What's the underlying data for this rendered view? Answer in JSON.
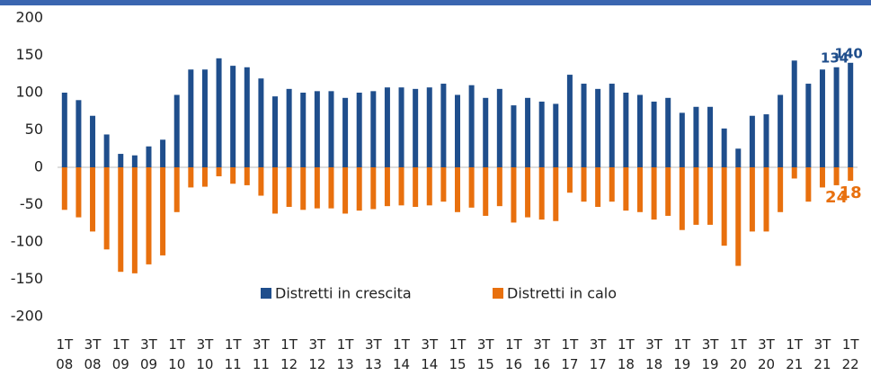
{
  "chart_data": {
    "type": "bar",
    "stacked": false,
    "categories": [
      "1T 08",
      null,
      "3T 08",
      null,
      "1T 09",
      null,
      "3T 09",
      null,
      "1T 10",
      null,
      "3T 10",
      null,
      "1T 11",
      null,
      "3T 11",
      null,
      "1T 12",
      null,
      "3T 12",
      null,
      "1T 13",
      null,
      "3T 13",
      null,
      "1T 14",
      null,
      "3T 14",
      null,
      "1T 15",
      null,
      "3T 15",
      null,
      "1T 16",
      null,
      "3T 16",
      null,
      "1T 17",
      null,
      "3T 17",
      null,
      "1T 18",
      null,
      "3T 18",
      null,
      "1T 19",
      null,
      "3T 19",
      null,
      "1T 20",
      null,
      "3T 20",
      null,
      "1T 21",
      null,
      "3T 21",
      null,
      "1T 22"
    ],
    "series": [
      {
        "name": "Distretti in crescita",
        "color": "#1f4e8c",
        "values": [
          100,
          90,
          69,
          44,
          18,
          16,
          28,
          37,
          97,
          131,
          131,
          146,
          136,
          134,
          119,
          95,
          105,
          100,
          102,
          102,
          93,
          100,
          102,
          107,
          107,
          105,
          107,
          112,
          97,
          110,
          93,
          105,
          83,
          93,
          88,
          85,
          124,
          112,
          105,
          112,
          100,
          97,
          88,
          93,
          73,
          81,
          81,
          52,
          25,
          69,
          71,
          97,
          143,
          112,
          131,
          134,
          140
        ],
        "value_labels": [
          null,
          null,
          null,
          null,
          null,
          null,
          null,
          null,
          null,
          null,
          null,
          null,
          null,
          null,
          null,
          null,
          null,
          null,
          null,
          null,
          null,
          null,
          null,
          null,
          null,
          null,
          null,
          null,
          null,
          null,
          null,
          null,
          null,
          null,
          null,
          null,
          null,
          null,
          null,
          null,
          null,
          null,
          null,
          null,
          null,
          null,
          null,
          null,
          null,
          null,
          null,
          null,
          null,
          null,
          null,
          "134",
          "140"
        ]
      },
      {
        "name": "Distretti in calo",
        "color": "#e8700e",
        "values": [
          -57,
          -67,
          -86,
          -110,
          -140,
          -142,
          -130,
          -118,
          -60,
          -27,
          -26,
          -12,
          -22,
          -24,
          -38,
          -62,
          -53,
          -57,
          -55,
          -55,
          -62,
          -58,
          -56,
          -52,
          -51,
          -53,
          -51,
          -46,
          -60,
          -54,
          -65,
          -52,
          -74,
          -67,
          -70,
          -72,
          -34,
          -46,
          -53,
          -46,
          -58,
          -60,
          -70,
          -65,
          -84,
          -77,
          -77,
          -105,
          -132,
          -86,
          -86,
          -60,
          -15,
          -46,
          -27,
          -24,
          -18
        ],
        "value_labels": [
          null,
          null,
          null,
          null,
          null,
          null,
          null,
          null,
          null,
          null,
          null,
          null,
          null,
          null,
          null,
          null,
          null,
          null,
          null,
          null,
          null,
          null,
          null,
          null,
          null,
          null,
          null,
          null,
          null,
          null,
          null,
          null,
          null,
          null,
          null,
          null,
          null,
          null,
          null,
          null,
          null,
          null,
          null,
          null,
          null,
          null,
          null,
          null,
          null,
          null,
          null,
          null,
          null,
          null,
          null,
          "24",
          "18"
        ]
      }
    ],
    "ylim": [
      -200,
      200
    ],
    "yticks": [
      200,
      150,
      100,
      50,
      0,
      -50,
      -100,
      -150,
      -200
    ],
    "legend": "bottom",
    "grid": false
  }
}
